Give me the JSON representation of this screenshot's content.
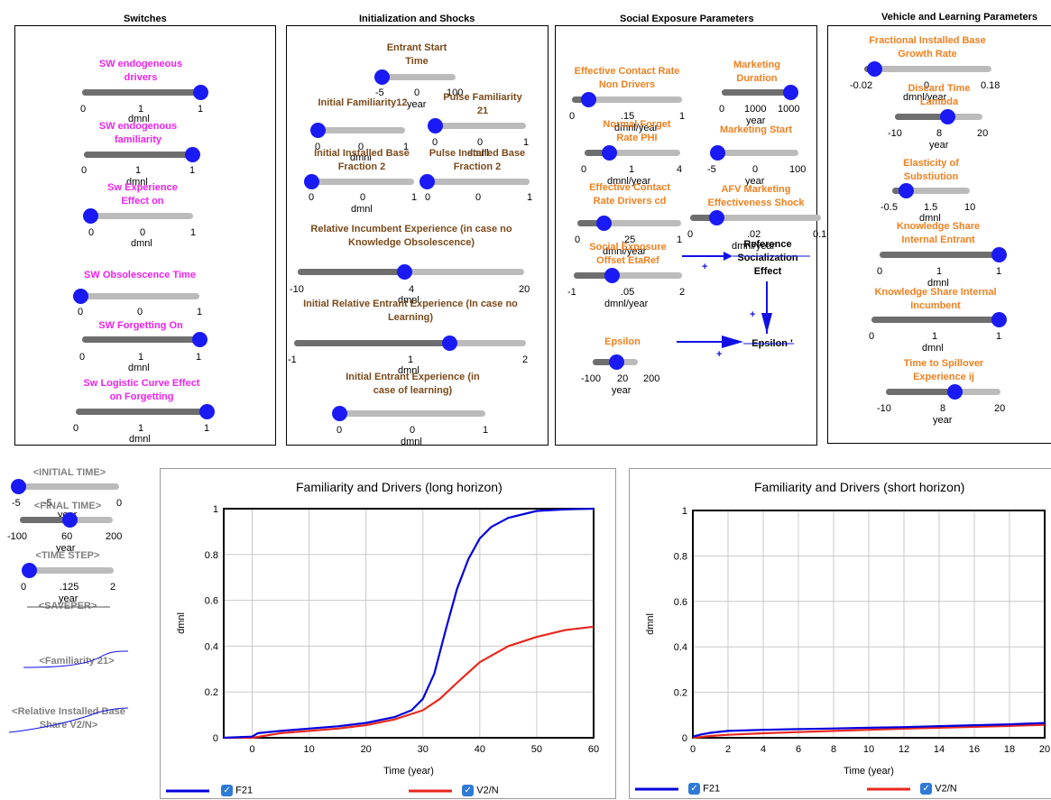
{
  "sections": {
    "switches": "Switches",
    "init": "Initialization and Shocks",
    "social": "Social Exposure Parameters",
    "vehicle": "Vehicle and Learning Parameters"
  },
  "switches": {
    "sw_endo_drivers": {
      "label": "SW endogeneous drivers",
      "min": "0",
      "mid": "1",
      "max": "1",
      "unit": "dmnl"
    },
    "sw_endo_fam": {
      "label": "SW endogenous familiarity",
      "min": "0",
      "mid": "1",
      "max": "1",
      "unit": "dmnl"
    },
    "sw_exp_effect": {
      "label": "Sw Experience Effect on",
      "min": "0",
      "mid": "0",
      "max": "1",
      "unit": "dmnl"
    },
    "sw_obs_time": {
      "label": "SW Obsolescence Time",
      "min": "0",
      "mid": "0",
      "max": "1",
      "unit": "dmnl"
    },
    "sw_forgetting": {
      "label": "SW Forgetting On",
      "min": "0",
      "mid": "1",
      "max": "1",
      "unit": "dmnl"
    },
    "sw_logistic": {
      "label": "Sw Logistic Curve Effect on Forgetting",
      "min": "0",
      "mid": "1",
      "max": "1",
      "unit": "dmnl"
    }
  },
  "init": {
    "entrant_start": {
      "label": "Entrant Start Time",
      "min": "-5",
      "mid": "0",
      "max": "100",
      "unit": "year"
    },
    "initial_fam12": {
      "label": "Initial Familiarity12",
      "min": "0",
      "mid": "0",
      "max": "1",
      "unit": "dmnl"
    },
    "pulse_fam21": {
      "label": "Pulse Familiarity 21",
      "min": "0",
      "mid": "0",
      "max": "1",
      "unit": "dmnl"
    },
    "init_ib_frac2": {
      "label": "Initial Installed Base Fraction 2",
      "min": "0",
      "mid": "0",
      "max": "1",
      "unit": "dmnl"
    },
    "pulse_ib_frac2": {
      "label": "Pulse Installed Base Fraction 2",
      "min": "0",
      "mid": "0",
      "max": "1",
      "unit": "dmnl"
    },
    "rel_inc_exp": {
      "label": "Relative Incumbent Experience (in case no Knowledge Obsolescence)",
      "min": "-10",
      "mid": "4",
      "max": "20",
      "unit": "dmnl"
    },
    "init_rel_ent_exp": {
      "label": "Initial Relative Entrant Experience (In case no Learning)",
      "min": "-1",
      "mid": "1",
      "max": "2",
      "unit": "dmnl"
    },
    "init_ent_exp": {
      "label": "Initial Entrant Experience (in case of learning)",
      "min": "0",
      "mid": "0",
      "max": "1",
      "unit": "dmnl"
    }
  },
  "social": {
    "ecr_non_drivers": {
      "label": "Effective Contact Rate Non Drivers",
      "min": "0",
      "mid": ".15",
      "max": "1",
      "unit": "dmnl/year"
    },
    "marketing_duration": {
      "label": "Marketing Duration",
      "min": "0",
      "mid": "1000",
      "max": "1000",
      "unit": "year"
    },
    "normal_forget": {
      "label": "Normal Forget Rate PHI",
      "min": "0",
      "mid": "1",
      "max": "4",
      "unit": "dmnl/year"
    },
    "marketing_start": {
      "label": "Marketing Start",
      "min": "-5",
      "mid": "0",
      "max": "100",
      "unit": "year"
    },
    "ecr_drivers": {
      "label": "Effective Contact Rate Drivers cd",
      "min": "0",
      "mid": ".25",
      "max": "1",
      "unit": "dmnl/year"
    },
    "afv_marketing": {
      "label": "AFV Marketing Effectiveness Shock",
      "min": "0",
      "mid": ".02",
      "max": "0.1",
      "unit": "dmnl/year"
    },
    "social_exposure": {
      "label": "Social Exposure Offset EtaRef",
      "min": "-1",
      "mid": ".05",
      "max": "2",
      "unit": "dmnl/year"
    },
    "epsilon": {
      "label": "Epsilon",
      "min": "-100",
      "mid": "20",
      "max": "200",
      "unit": "year"
    },
    "ref_soc_effect": "Reference Socialization Effect",
    "epsilon_prime": "Epsilon '",
    "plus": "+"
  },
  "vehicle": {
    "frac_ib_growth": {
      "label": "Fractional Installed Base Growth Rate",
      "min": "-0.02",
      "mid": "0",
      "max": "0.18",
      "unit": "dmnl/year"
    },
    "discard_time": {
      "label": "Discard Time Lambda",
      "min": "-10",
      "mid": "8",
      "max": "20",
      "unit": "year"
    },
    "elasticity": {
      "label": "Elasticity of Substiution",
      "min": "-0.5",
      "mid": "1.5",
      "max": "10",
      "unit": "dmnl"
    },
    "ks_internal_entrant": {
      "label": "Knowledge Share Internal Entrant",
      "min": "0",
      "mid": "1",
      "max": "1",
      "unit": "dmnl"
    },
    "ks_internal_incumbent": {
      "label": "Knowledge Share Internal Incumbent",
      "min": "0",
      "mid": "1",
      "max": "1",
      "unit": "dmnl"
    },
    "time_spillover": {
      "label": "Time to Spillover Experience ij",
      "min": "-10",
      "mid": "8",
      "max": "20",
      "unit": "year"
    }
  },
  "time": {
    "initial": {
      "label": "<INITIAL TIME>",
      "min": "-5",
      "mid": "-5",
      "max": "0",
      "unit": "year"
    },
    "final": {
      "label": "<FINAL TIME>",
      "min": "-100",
      "mid": "60",
      "max": "200",
      "unit": "year"
    },
    "step": {
      "label": "<TIME STEP>",
      "min": "0",
      "mid": ".125",
      "max": "2",
      "unit": "year"
    },
    "saveper": "<SAVEPER>",
    "fam21": "<Familiarity 21>",
    "rel_ib_share": "<Relative Installed Base Share V2/N>"
  },
  "colors": {
    "f21": "#0000dd",
    "v2n": "#e8281e",
    "knob": "#1a1af5"
  },
  "chart_data": [
    {
      "type": "line",
      "title": "Familiarity and Drivers (long horizon)",
      "xlabel": "Time (year)",
      "ylabel": "dmnl",
      "xlim": [
        -5,
        60
      ],
      "ylim": [
        0,
        1
      ],
      "xticks": [
        0,
        10,
        20,
        30,
        40,
        50,
        60
      ],
      "yticks": [
        0,
        0.2,
        0.4,
        0.6,
        0.8,
        1
      ],
      "grid": true,
      "legend": "bottom",
      "series": [
        {
          "name": "F21",
          "x": [
            -5,
            0,
            1,
            5,
            10,
            15,
            20,
            25,
            28,
            30,
            32,
            34,
            36,
            38,
            40,
            42,
            45,
            50,
            55,
            60
          ],
          "values": [
            0,
            0.005,
            0.02,
            0.03,
            0.04,
            0.05,
            0.065,
            0.09,
            0.12,
            0.17,
            0.28,
            0.47,
            0.65,
            0.78,
            0.87,
            0.92,
            0.96,
            0.99,
            0.997,
            1.0
          ]
        },
        {
          "name": "V2/N",
          "x": [
            -5,
            0,
            5,
            10,
            15,
            20,
            25,
            30,
            33,
            36,
            40,
            45,
            50,
            55,
            60
          ],
          "values": [
            0,
            0,
            0.02,
            0.03,
            0.04,
            0.055,
            0.08,
            0.12,
            0.17,
            0.24,
            0.33,
            0.4,
            0.44,
            0.47,
            0.485
          ]
        }
      ]
    },
    {
      "type": "line",
      "title": "Familiarity and Drivers (short horizon)",
      "xlabel": "Time (year)",
      "ylabel": "dmnl",
      "xlim": [
        0,
        20
      ],
      "ylim": [
        0,
        1
      ],
      "xticks": [
        0,
        2,
        4,
        6,
        8,
        10,
        12,
        14,
        16,
        18,
        20
      ],
      "yticks": [
        0,
        0.2,
        0.4,
        0.6,
        0.8,
        1
      ],
      "grid": true,
      "legend": "bottom",
      "series": [
        {
          "name": "F21",
          "x": [
            0,
            0.5,
            1,
            2,
            4,
            6,
            8,
            10,
            12,
            14,
            16,
            18,
            20
          ],
          "values": [
            0.005,
            0.015,
            0.022,
            0.03,
            0.035,
            0.038,
            0.041,
            0.044,
            0.047,
            0.051,
            0.055,
            0.059,
            0.065
          ]
        },
        {
          "name": "V2/N",
          "x": [
            0,
            1,
            2,
            4,
            6,
            8,
            10,
            12,
            14,
            16,
            18,
            20
          ],
          "values": [
            0,
            0.008,
            0.013,
            0.02,
            0.025,
            0.03,
            0.035,
            0.04,
            0.044,
            0.048,
            0.052,
            0.057
          ]
        }
      ]
    }
  ],
  "legend": {
    "f21": "F21",
    "v2n": "V2/N",
    "check": "✓"
  }
}
